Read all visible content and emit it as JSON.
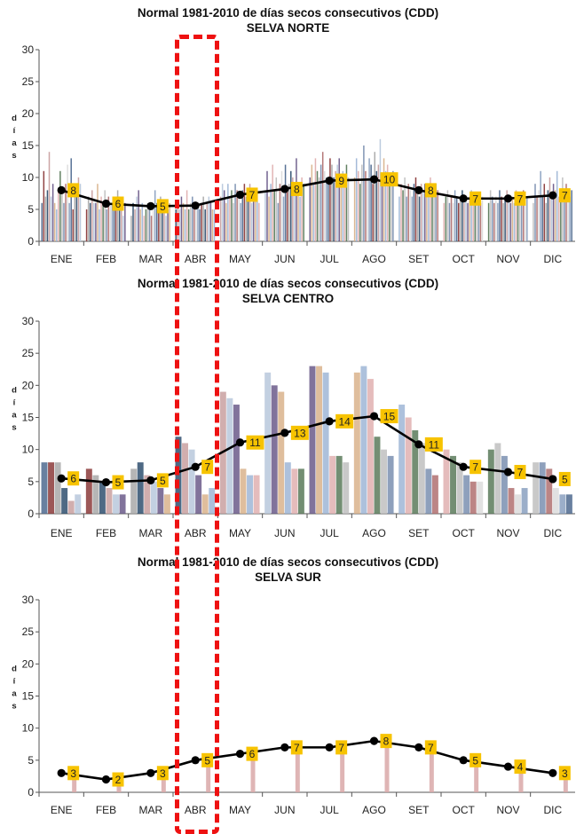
{
  "months": [
    "ENE",
    "FEB",
    "MAR",
    "ABR",
    "MAY",
    "JUN",
    "JUL",
    "AGO",
    "SET",
    "OCT",
    "NOV",
    "DIC"
  ],
  "ylabel": "días",
  "colors": {
    "line": "#000000",
    "label_bg": "#f7c300",
    "highlight": "#ee1111"
  },
  "chart_data": [
    {
      "type": "bar",
      "title": "Normal 1981-2010 de días secos consecutivos  (CDD)",
      "subtitle": "SELVA NORTE",
      "ylim": [
        0,
        30
      ],
      "yticks": [
        0,
        5,
        10,
        15,
        20,
        25,
        30
      ],
      "series": [
        {
          "values": [
            8,
            6,
            5,
            5,
            7,
            8,
            9,
            10,
            8,
            7,
            7,
            7
          ]
        }
      ],
      "point_values": [
        8.0,
        5.9,
        5.5,
        5.6,
        7.3,
        8.2,
        9.5,
        9.7,
        8.0,
        6.7,
        6.7,
        7.2
      ],
      "labels": [
        "8",
        "6",
        "5",
        "",
        "7",
        "8",
        "9",
        "10",
        "8",
        "7",
        "7",
        "7"
      ],
      "station_bars": [
        [
          6,
          11,
          7,
          8,
          14,
          7,
          9,
          6,
          5,
          8,
          11,
          8,
          6,
          9,
          12,
          6,
          13,
          5,
          8,
          7,
          10,
          9
        ],
        [
          5,
          7,
          6,
          8,
          6,
          6,
          9,
          5,
          7,
          6,
          8,
          5,
          7,
          6,
          6,
          5,
          7,
          8,
          6,
          5,
          4,
          6
        ],
        [
          4,
          6,
          5,
          7,
          8,
          5,
          6,
          4,
          5,
          6,
          5,
          4,
          5,
          8,
          6,
          5,
          7,
          6,
          5,
          4,
          5,
          6
        ],
        [
          5,
          6,
          5,
          7,
          6,
          5,
          8,
          5,
          6,
          7,
          6,
          5,
          6,
          5,
          6,
          7,
          5,
          6,
          7,
          6,
          5,
          5
        ],
        [
          7,
          9,
          8,
          6,
          9,
          7,
          8,
          6,
          9,
          8,
          7,
          6,
          8,
          9,
          7,
          7,
          9,
          6,
          8,
          7,
          8,
          6
        ],
        [
          8,
          11,
          7,
          9,
          12,
          8,
          10,
          6,
          9,
          11,
          7,
          12,
          8,
          9,
          11,
          10,
          8,
          13,
          9,
          7,
          10,
          9
        ],
        [
          10,
          12,
          9,
          13,
          11,
          10,
          12,
          14,
          11,
          10,
          9,
          13,
          12,
          10,
          11,
          12,
          13,
          10,
          11,
          9,
          12,
          10
        ],
        [
          10,
          13,
          11,
          9,
          12,
          15,
          11,
          10,
          13,
          12,
          9,
          14,
          11,
          12,
          16,
          10,
          13,
          11,
          12,
          10,
          9,
          11
        ],
        [
          7,
          9,
          8,
          10,
          7,
          9,
          8,
          7,
          9,
          10,
          8,
          7,
          9,
          8,
          9,
          7,
          8,
          10,
          8,
          7,
          9,
          8
        ],
        [
          6,
          7,
          8,
          6,
          7,
          6,
          8,
          7,
          6,
          7,
          8,
          6,
          7,
          6,
          7,
          8,
          6,
          7,
          6,
          7,
          6,
          7
        ],
        [
          6,
          8,
          7,
          6,
          7,
          6,
          8,
          7,
          6,
          7,
          8,
          7,
          6,
          7,
          6,
          8,
          7,
          6,
          7,
          8,
          6,
          7
        ],
        [
          6,
          9,
          7,
          8,
          11,
          7,
          9,
          6,
          8,
          10,
          7,
          9,
          8,
          11,
          7,
          8,
          10,
          7,
          9,
          8,
          7,
          8
        ]
      ]
    },
    {
      "type": "bar",
      "title": "Normal 1981-2010 de días secos consecutivos  (CDD)",
      "subtitle": "SELVA CENTRO",
      "ylim": [
        0,
        30
      ],
      "yticks": [
        0,
        5,
        10,
        15,
        20,
        25,
        30
      ],
      "series": [
        {
          "values": [
            6,
            5,
            5,
            7,
            11,
            13,
            14,
            15,
            11,
            7,
            7,
            5
          ]
        }
      ],
      "point_values": [
        5.5,
        4.9,
        5.2,
        7.3,
        11.1,
        12.6,
        14.4,
        15.2,
        10.8,
        7.3,
        6.5,
        5.4
      ],
      "labels": [
        "6",
        "5",
        "5",
        "7",
        "11",
        "13",
        "14",
        "15",
        "11",
        "7",
        "7",
        "5"
      ],
      "station_bars": [
        [
          8,
          8,
          8,
          4,
          2,
          3
        ],
        [
          7,
          6,
          5,
          4,
          3,
          3
        ],
        [
          7,
          8,
          6,
          5,
          4,
          3
        ],
        [
          12,
          11,
          10,
          6,
          3,
          4
        ],
        [
          19,
          18,
          17,
          7,
          6,
          6
        ],
        [
          22,
          20,
          19,
          8,
          7,
          7
        ],
        [
          23,
          23,
          22,
          9,
          9,
          8
        ],
        [
          22,
          23,
          21,
          12,
          10,
          9
        ],
        [
          17,
          15,
          13,
          11,
          7,
          6
        ],
        [
          10,
          9,
          8,
          6,
          5,
          5
        ],
        [
          10,
          11,
          9,
          4,
          3,
          4
        ],
        [
          8,
          8,
          7,
          4,
          3,
          3
        ]
      ]
    },
    {
      "type": "bar",
      "title": "Normal 1981-2010 de días secos consecutivos  (CDD)",
      "subtitle": "SELVA SUR",
      "ylim": [
        0,
        30
      ],
      "yticks": [
        0,
        5,
        10,
        15,
        20,
        25,
        30
      ],
      "series": [
        {
          "values": [
            3,
            2,
            3,
            5,
            6,
            7,
            7,
            8,
            7,
            5,
            4,
            3
          ]
        }
      ],
      "point_values": [
        3,
        2,
        3,
        5,
        6,
        7,
        7,
        8,
        7,
        5,
        4,
        3
      ],
      "labels": [
        "3",
        "2",
        "3",
        "5",
        "6",
        "7",
        "7",
        "8",
        "7",
        "5",
        "4",
        "3"
      ],
      "station_bars": [
        [
          3
        ],
        [
          2
        ],
        [
          3
        ],
        [
          5
        ],
        [
          6
        ],
        [
          7
        ],
        [
          7
        ],
        [
          8
        ],
        [
          7
        ],
        [
          5
        ],
        [
          4
        ],
        [
          3
        ]
      ]
    }
  ]
}
